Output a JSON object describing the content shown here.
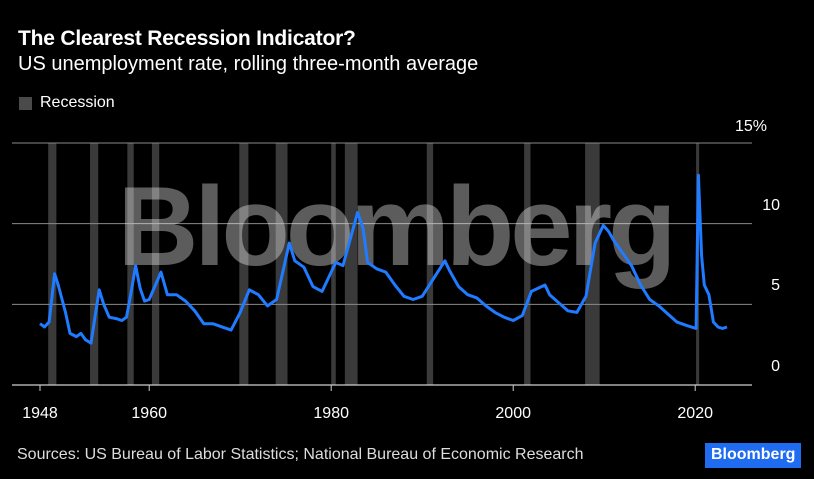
{
  "header": {
    "title": "The Clearest Recession Indicator?",
    "subtitle": "US unemployment rate, rolling three-month average"
  },
  "legend": {
    "label": "Recession",
    "color": "#4a4a4a"
  },
  "footer": {
    "source": "Sources: US Bureau of Labor Statistics; National Bureau of Economic Research",
    "badge": "Bloomberg"
  },
  "watermark": "Bloomberg",
  "colors": {
    "line": "#1f7bff",
    "recession": "#3a3a3a",
    "grid": "#8a8a8a",
    "background": "#000000",
    "badge": "#1f6cf0"
  },
  "chart_data": {
    "type": "line",
    "title": "The Clearest Recession Indicator?",
    "subtitle": "US unemployment rate, rolling three-month average",
    "xlabel": "",
    "ylabel": "",
    "xlim": [
      1945.5,
      2026.5
    ],
    "ylim": [
      0,
      15
    ],
    "y_ticks": [
      "15%",
      "10",
      "5",
      "0"
    ],
    "x_ticks": [
      "1948",
      "1960",
      "1980",
      "2000",
      "2020"
    ],
    "grid": true,
    "legend": [
      "Recession"
    ],
    "legend_position": "top-left",
    "recessions": [
      [
        1948.9,
        1949.8
      ],
      [
        1953.5,
        1954.4
      ],
      [
        1957.6,
        1958.3
      ],
      [
        1960.3,
        1961.1
      ],
      [
        1969.9,
        1970.9
      ],
      [
        1973.9,
        1975.2
      ],
      [
        1980.0,
        1980.5
      ],
      [
        1981.5,
        1982.9
      ],
      [
        1990.5,
        1991.2
      ],
      [
        2001.2,
        2001.9
      ],
      [
        2007.9,
        2009.5
      ],
      [
        2020.1,
        2020.3
      ]
    ],
    "series": [
      {
        "name": "US unemployment rate (3-month avg)",
        "x": [
          1948,
          1948.5,
          1949,
          1949.6,
          1950,
          1950.8,
          1951.3,
          1952,
          1952.5,
          1953,
          1953.6,
          1954.5,
          1955,
          1955.6,
          1956.5,
          1957,
          1957.5,
          1958,
          1958.5,
          1959,
          1959.5,
          1960,
          1961.3,
          1962,
          1963,
          1964,
          1965,
          1966,
          1967,
          1968,
          1969,
          1970,
          1971,
          1972,
          1973,
          1974,
          1975.4,
          1976,
          1977,
          1978,
          1979,
          1980.5,
          1981.3,
          1982.9,
          1983.5,
          1984,
          1985,
          1986,
          1987,
          1988,
          1989,
          1990,
          1992.5,
          1993,
          1994,
          1995,
          1996,
          1997,
          1998,
          1999,
          2000,
          2001,
          2002,
          2003.5,
          2004,
          2005,
          2006,
          2007,
          2008,
          2009,
          2009.9,
          2010.5,
          2011,
          2012,
          2013,
          2014,
          2015,
          2016,
          2017,
          2018,
          2019,
          2020.1,
          2020.35,
          2020.7,
          2021,
          2021.5,
          2022,
          2022.5,
          2023,
          2023.5
        ],
        "values": [
          3.8,
          3.6,
          3.9,
          6.9,
          6.2,
          4.5,
          3.2,
          3.0,
          3.2,
          2.8,
          2.6,
          5.9,
          5.0,
          4.2,
          4.1,
          4.0,
          4.2,
          5.7,
          7.4,
          6.0,
          5.2,
          5.3,
          7.0,
          5.6,
          5.6,
          5.2,
          4.6,
          3.8,
          3.8,
          3.6,
          3.4,
          4.5,
          5.9,
          5.6,
          4.9,
          5.3,
          8.8,
          7.7,
          7.3,
          6.1,
          5.8,
          7.6,
          7.4,
          10.7,
          9.7,
          7.6,
          7.2,
          7.0,
          6.2,
          5.5,
          5.3,
          5.5,
          7.7,
          7.1,
          6.1,
          5.6,
          5.4,
          4.9,
          4.5,
          4.2,
          4.0,
          4.3,
          5.8,
          6.2,
          5.6,
          5.1,
          4.6,
          4.5,
          5.5,
          8.8,
          9.9,
          9.5,
          9.0,
          8.2,
          7.4,
          6.2,
          5.3,
          4.9,
          4.4,
          3.9,
          3.7,
          3.5,
          13.0,
          8.0,
          6.2,
          5.6,
          3.9,
          3.6,
          3.5,
          3.6
        ]
      }
    ]
  }
}
